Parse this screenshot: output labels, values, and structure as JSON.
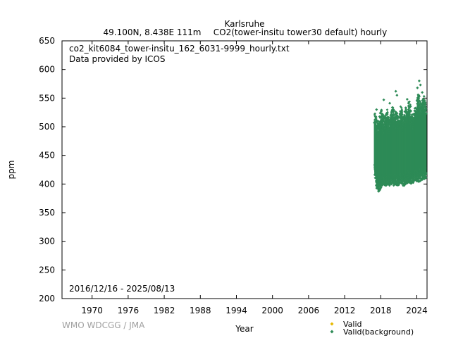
{
  "chart_data": {
    "type": "scatter",
    "title": "Karlsruhe",
    "subtitle_location": "49.100N, 8.438E 111m",
    "subtitle_series": "CO2(tower-insitu tower30 default) hourly",
    "filename": "co2_kit6084_tower-insitu_162_6031-9999_hourly.txt",
    "provider": "Data provided by ICOS",
    "date_range": "2016/12/16 - 2025/08/13",
    "xlabel": "Year",
    "ylabel": "ppm",
    "xlim": [
      1965,
      2025.7
    ],
    "ylim": [
      200,
      650
    ],
    "xticks": [
      "1970",
      "1976",
      "1982",
      "1988",
      "1994",
      "2000",
      "2006",
      "2012",
      "2018",
      "2024"
    ],
    "yticks": [
      "200",
      "250",
      "300",
      "350",
      "400",
      "450",
      "500",
      "550",
      "600",
      "650"
    ],
    "grid": false,
    "legend_position": "bottom-right",
    "series": [
      {
        "name": "Valid",
        "color": "#e6b800",
        "marker": "diamond",
        "values": []
      },
      {
        "name": "Valid(background)",
        "color": "#2e8b57",
        "marker": "diamond",
        "x": [
          2017.0,
          2017.3,
          2017.6,
          2017.9,
          2018.2,
          2018.5,
          2018.8,
          2019.1,
          2019.4,
          2019.7,
          2020.0,
          2020.3,
          2020.6,
          2020.9,
          2021.2,
          2021.5,
          2021.8,
          2022.1,
          2022.4,
          2022.7,
          2023.0,
          2023.3,
          2023.6,
          2023.9,
          2024.2,
          2024.5,
          2024.8,
          2025.1,
          2025.5
        ],
        "low": [
          415,
          398,
          385,
          390,
          396,
          400,
          395,
          398,
          397,
          400,
          396,
          399,
          398,
          397,
          400,
          401,
          396,
          399,
          402,
          404,
          400,
          402,
          405,
          406,
          403,
          405,
          407,
          408,
          410
        ],
        "high": [
          528,
          512,
          505,
          522,
          533,
          514,
          520,
          530,
          510,
          525,
          538,
          518,
          528,
          520,
          524,
          540,
          515,
          536,
          522,
          545,
          530,
          520,
          528,
          540,
          560,
          545,
          538,
          552,
          540
        ],
        "outliers": [
          [
            2018.5,
            547
          ],
          [
            2020.5,
            562
          ],
          [
            2020.7,
            555
          ],
          [
            2022.4,
            548
          ],
          [
            2024.1,
            568
          ],
          [
            2024.4,
            580
          ],
          [
            2024.6,
            573
          ],
          [
            2024.9,
            560
          ],
          [
            2025.2,
            553
          ],
          [
            2019.5,
            541
          ],
          [
            2017.3,
            530
          ]
        ]
      }
    ],
    "credit": "WMO WDCGG / JMA"
  }
}
